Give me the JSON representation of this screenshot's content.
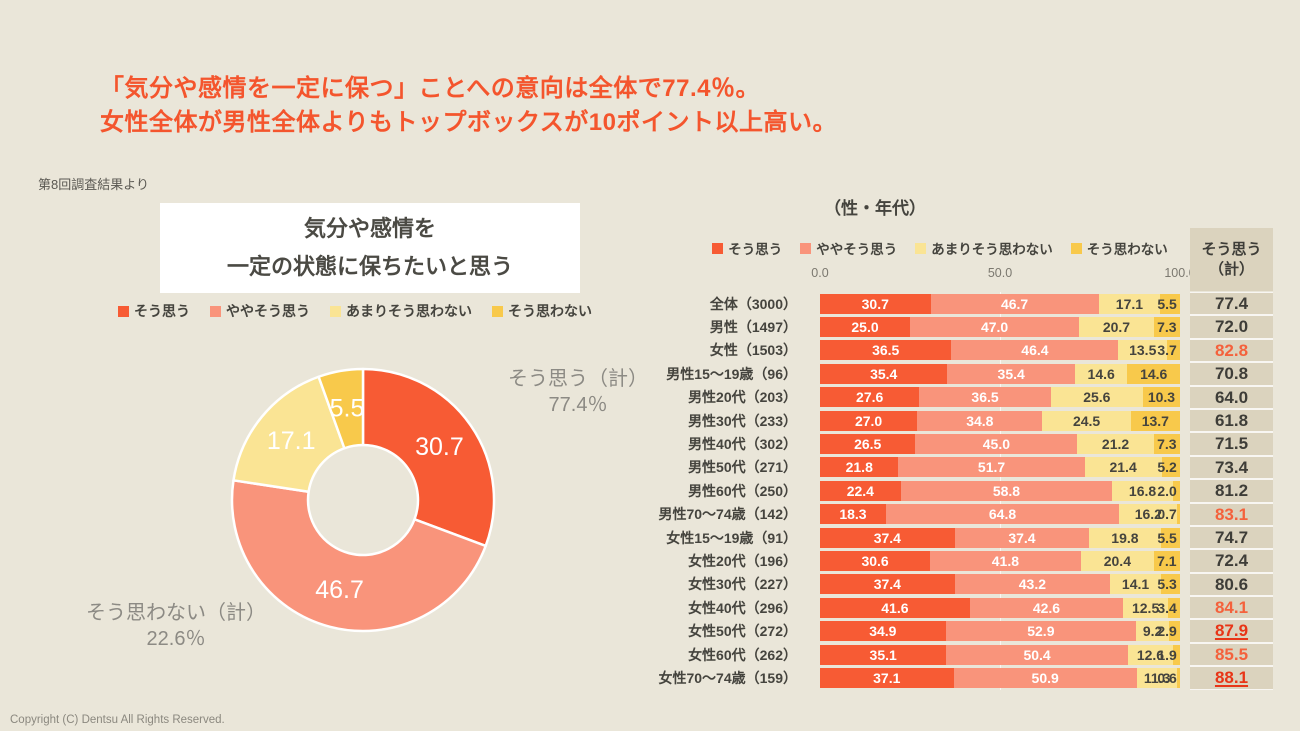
{
  "slide": {
    "title_line1": "「気分や感情を一定に保つ」ことへの意向は全体で77.4％。",
    "title_line2": "女性全体が男性全体よりもトップボックスが10ポイント以上高い。",
    "source_note": "第8回調査結果より",
    "footer": "Copyright (C) Dentsu All Rights Reserved."
  },
  "colors": {
    "background": "#EAE6D9",
    "accent_title": "#F4552D",
    "series": [
      "#F75B34",
      "#F9947B",
      "#FAE494",
      "#F8C94B"
    ],
    "segment_label": [
      "#FFFFFF",
      "#FFFFFF",
      "#45443E",
      "#45443E"
    ],
    "total_normal": "#3E3D38",
    "total_orange": "#F4613C",
    "total_red_bold": "#E83517",
    "box_tan": "#DBD3BE"
  },
  "legend": [
    "そう思う",
    "ややそう思う",
    "あまりそう思わない",
    "そう思わない"
  ],
  "left_chart": {
    "box_title_line1": "気分や感情を",
    "box_title_line2": "一定の状態に保ちたいと思う",
    "callout_positive": {
      "line1": "そう思う（計）",
      "line2": "77.4％"
    },
    "callout_negative": {
      "line1": "そう思わない（計）",
      "line2": "22.6％"
    }
  },
  "right_chart": {
    "title": "（性・年代）",
    "total_header_line1": "そう思う",
    "total_header_line2": "（計）"
  },
  "chart_data": [
    {
      "type": "pie",
      "donut": true,
      "title": "気分や感情を一定の状態に保ちたいと思う",
      "labels": [
        "そう思う",
        "ややそう思う",
        "あまりそう思わない",
        "そう思わない"
      ],
      "values": [
        30.7,
        46.7,
        17.1,
        5.5
      ],
      "annotations": {
        "そう思う（計）": 77.4,
        "そう思わない（計）": 22.6
      },
      "start_angle_deg": 0,
      "direction": "clockwise"
    },
    {
      "type": "bar",
      "stacked": true,
      "orientation": "horizontal",
      "title": "（性・年代）",
      "series_labels": [
        "そう思う",
        "ややそう思う",
        "あまりそう思わない",
        "そう思わない"
      ],
      "x_ticks": [
        "0.0",
        "50.0",
        "100.0"
      ],
      "xlim": [
        0,
        100
      ],
      "total_column_label": "そう思う（計）",
      "rows": [
        {
          "label": "全体（3000）",
          "values": [
            30.7,
            46.7,
            17.1,
            5.5
          ],
          "total": "77.4",
          "emphasis": "none"
        },
        {
          "label": "男性（1497）",
          "values": [
            25.0,
            47.0,
            20.7,
            7.3
          ],
          "total": "72.0",
          "emphasis": "none"
        },
        {
          "label": "女性（1503）",
          "values": [
            36.5,
            46.4,
            13.5,
            3.7
          ],
          "total": "82.8",
          "emphasis": "orange"
        },
        {
          "label": "男性15〜19歳（96）",
          "values": [
            35.4,
            35.4,
            14.6,
            14.6
          ],
          "total": "70.8",
          "emphasis": "none"
        },
        {
          "label": "男性20代（203）",
          "values": [
            27.6,
            36.5,
            25.6,
            10.3
          ],
          "total": "64.0",
          "emphasis": "none"
        },
        {
          "label": "男性30代（233）",
          "values": [
            27.0,
            34.8,
            24.5,
            13.7
          ],
          "total": "61.8",
          "emphasis": "none"
        },
        {
          "label": "男性40代（302）",
          "values": [
            26.5,
            45.0,
            21.2,
            7.3
          ],
          "total": "71.5",
          "emphasis": "none"
        },
        {
          "label": "男性50代（271）",
          "values": [
            21.8,
            51.7,
            21.4,
            5.2
          ],
          "total": "73.4",
          "emphasis": "none"
        },
        {
          "label": "男性60代（250）",
          "values": [
            22.4,
            58.8,
            16.8,
            2.0
          ],
          "total": "81.2",
          "emphasis": "none"
        },
        {
          "label": "男性70〜74歳（142）",
          "values": [
            18.3,
            64.8,
            16.2,
            0.7
          ],
          "total": "83.1",
          "emphasis": "orange"
        },
        {
          "label": "女性15〜19歳（91）",
          "values": [
            37.4,
            37.4,
            19.8,
            5.5
          ],
          "total": "74.7",
          "emphasis": "none"
        },
        {
          "label": "女性20代（196）",
          "values": [
            30.6,
            41.8,
            20.4,
            7.1
          ],
          "total": "72.4",
          "emphasis": "none"
        },
        {
          "label": "女性30代（227）",
          "values": [
            37.4,
            43.2,
            14.1,
            5.3
          ],
          "total": "80.6",
          "emphasis": "none"
        },
        {
          "label": "女性40代（296）",
          "values": [
            41.6,
            42.6,
            12.5,
            3.4
          ],
          "total": "84.1",
          "emphasis": "orange"
        },
        {
          "label": "女性50代（272）",
          "values": [
            34.9,
            52.9,
            9.2,
            2.9
          ],
          "total": "87.9",
          "emphasis": "red-underline"
        },
        {
          "label": "女性60代（262）",
          "values": [
            35.1,
            50.4,
            12.6,
            1.9
          ],
          "total": "85.5",
          "emphasis": "orange"
        },
        {
          "label": "女性70〜74歳（159）",
          "values": [
            37.1,
            50.9,
            11.3,
            0.6
          ],
          "total": "88.1",
          "emphasis": "red-underline"
        }
      ]
    }
  ]
}
